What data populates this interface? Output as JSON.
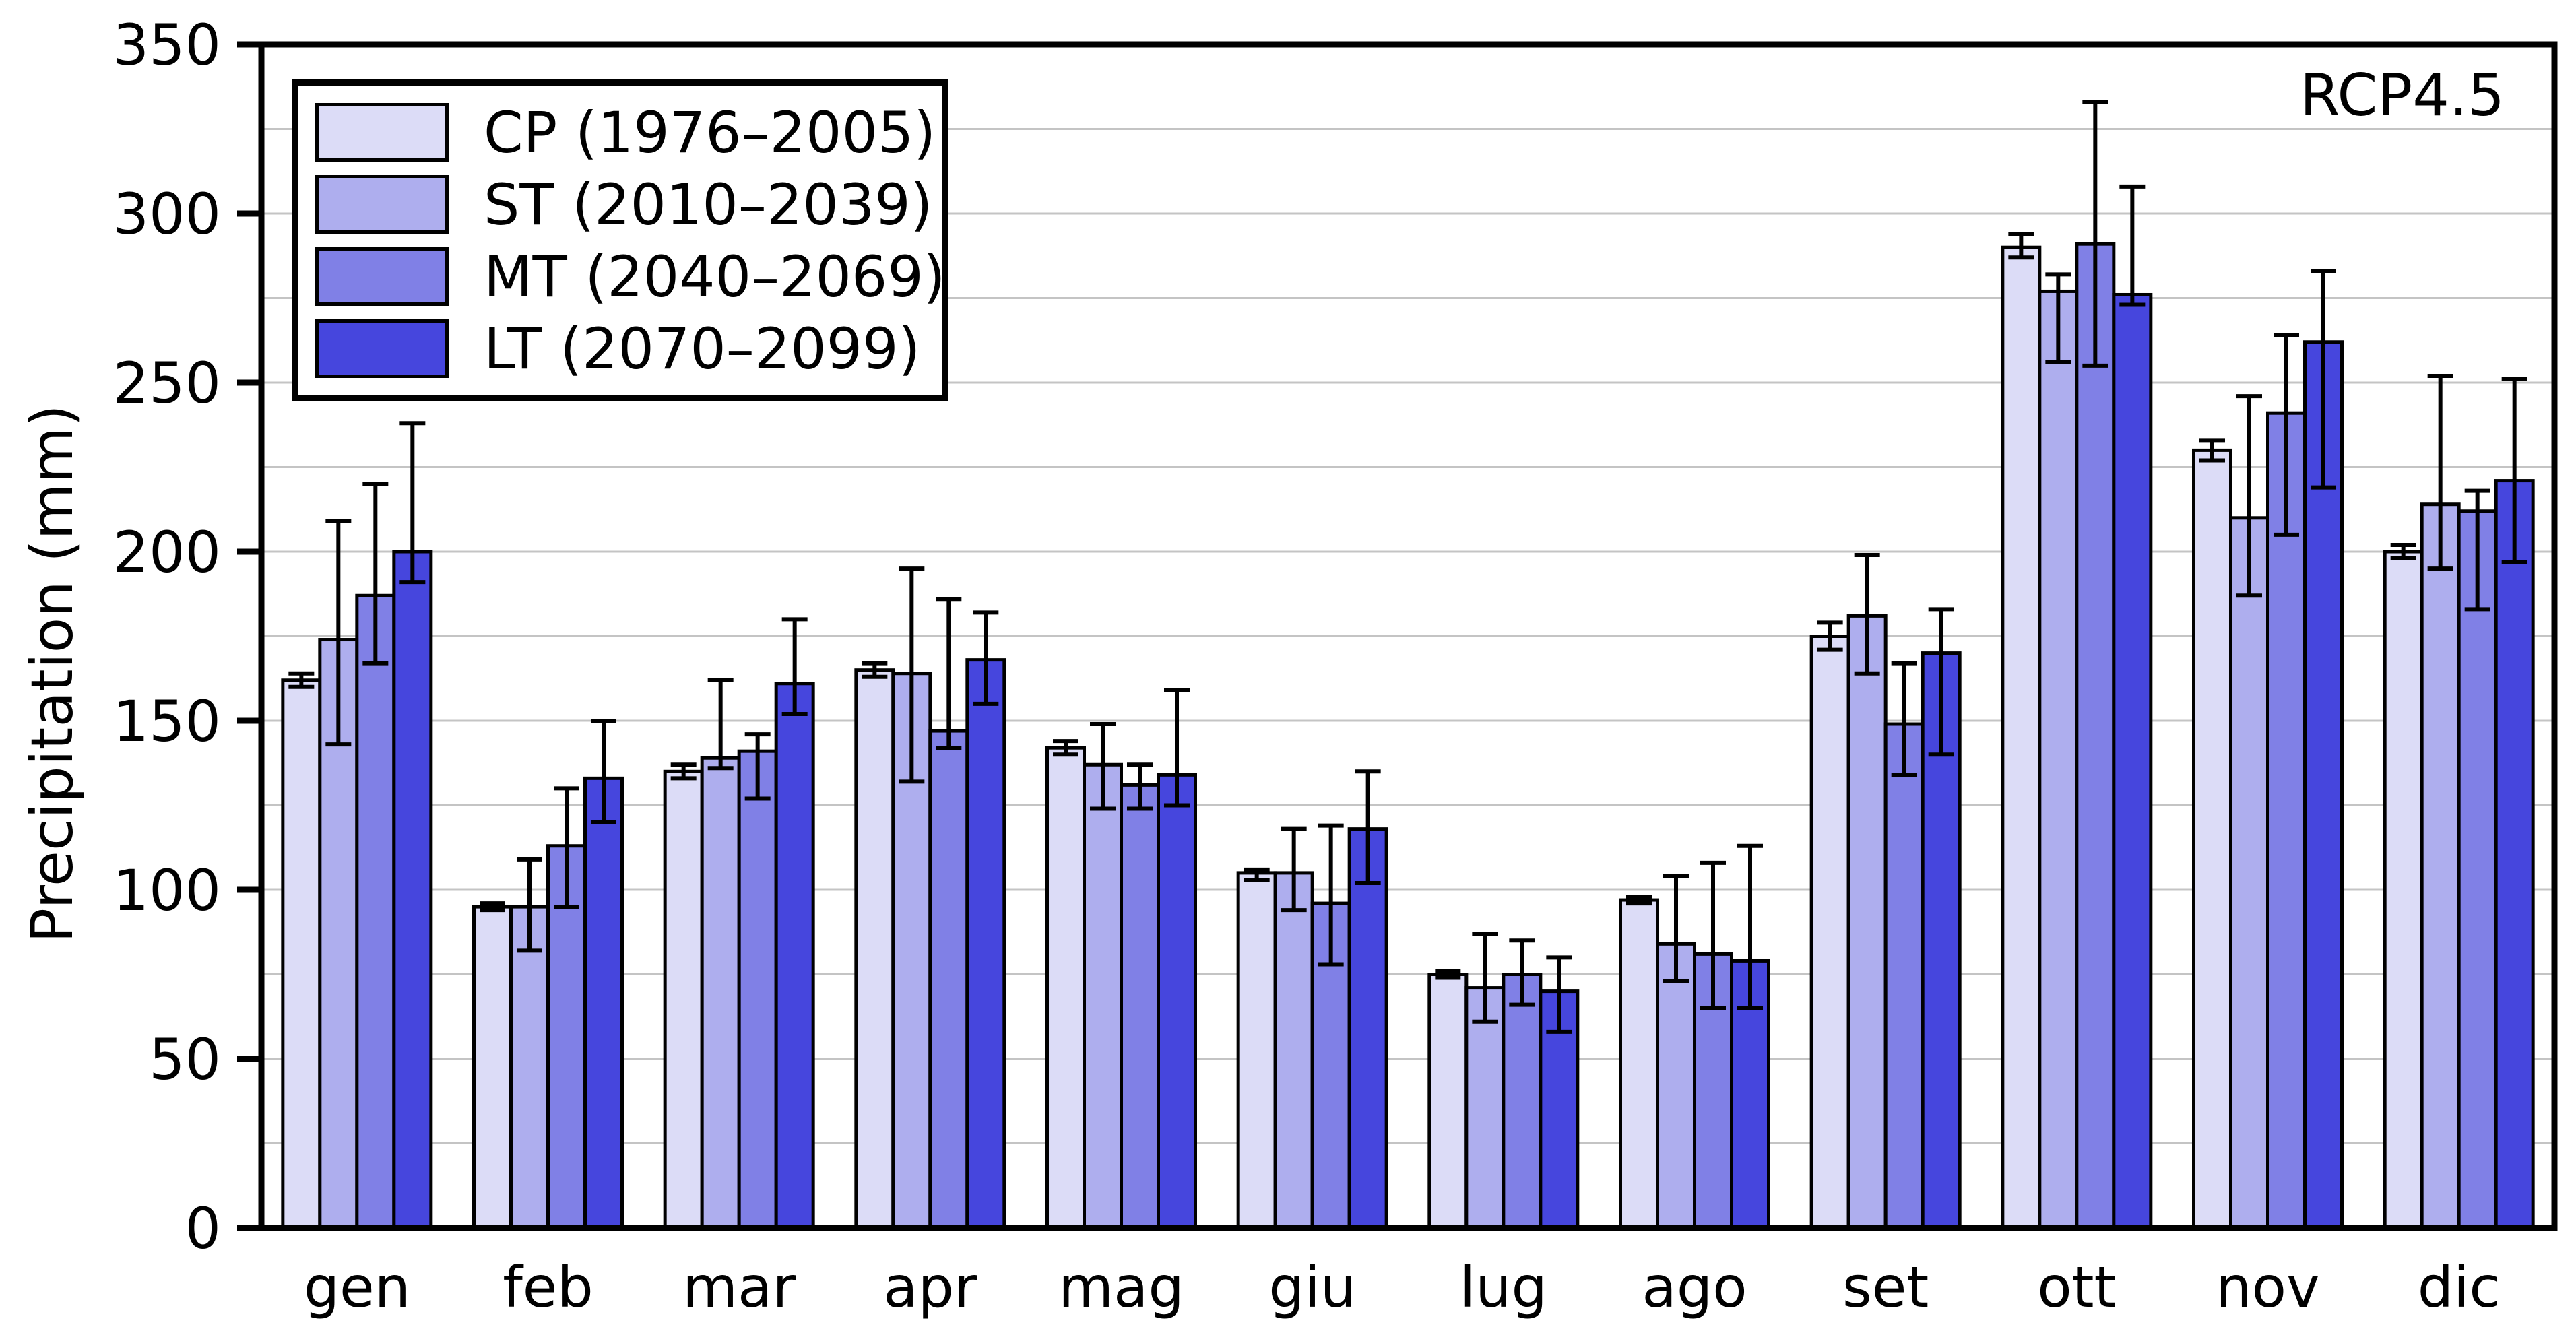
{
  "chart_data": {
    "type": "bar",
    "title": "",
    "annotation": "RCP4.5",
    "xlabel": "",
    "ylabel": "Precipitation (mm)",
    "ylim": [
      0,
      350
    ],
    "yticks": [
      0,
      50,
      100,
      150,
      200,
      250,
      300,
      350
    ],
    "grid_step": 25,
    "grid": true,
    "grid_color": "#c4c4c4",
    "axis_color": "#000000",
    "legend_position": "upper-left",
    "categories": [
      "gen",
      "feb",
      "mar",
      "apr",
      "mag",
      "giu",
      "lug",
      "ago",
      "set",
      "ott",
      "nov",
      "dic"
    ],
    "series": [
      {
        "name": "CP (1976–2005)",
        "color": "#dcdcf7",
        "values": [
          162,
          95,
          135,
          165,
          142,
          105,
          75,
          97,
          175,
          290,
          230,
          200
        ],
        "err_low": [
          160,
          94,
          133,
          163,
          140,
          103,
          74,
          96,
          171,
          287,
          227,
          198
        ],
        "err_high": [
          164,
          96,
          137,
          167,
          144,
          106,
          76,
          98,
          179,
          294,
          233,
          202
        ]
      },
      {
        "name": "ST (2010–2039)",
        "color": "#aeaeee",
        "values": [
          174,
          95,
          139,
          164,
          137,
          105,
          71,
          84,
          181,
          277,
          210,
          214
        ],
        "err_low": [
          143,
          82,
          136,
          132,
          124,
          94,
          61,
          73,
          164,
          256,
          187,
          195
        ],
        "err_high": [
          209,
          109,
          162,
          195,
          149,
          118,
          87,
          104,
          199,
          282,
          246,
          252
        ]
      },
      {
        "name": "MT (2040–2069)",
        "color": "#8080e6",
        "values": [
          187,
          113,
          141,
          147,
          131,
          96,
          75,
          81,
          149,
          291,
          241,
          212
        ],
        "err_low": [
          167,
          95,
          127,
          142,
          124,
          78,
          66,
          65,
          134,
          255,
          205,
          183
        ],
        "err_high": [
          220,
          130,
          146,
          186,
          137,
          119,
          85,
          108,
          167,
          333,
          264,
          218
        ]
      },
      {
        "name": "LT (2070–2099)",
        "color": "#4646dd",
        "values": [
          200,
          133,
          161,
          168,
          134,
          118,
          70,
          79,
          170,
          276,
          262,
          221
        ],
        "err_low": [
          191,
          120,
          152,
          155,
          125,
          102,
          58,
          65,
          140,
          273,
          219,
          197
        ],
        "err_high": [
          238,
          150,
          180,
          182,
          159,
          135,
          80,
          113,
          183,
          308,
          283,
          251
        ]
      }
    ]
  }
}
